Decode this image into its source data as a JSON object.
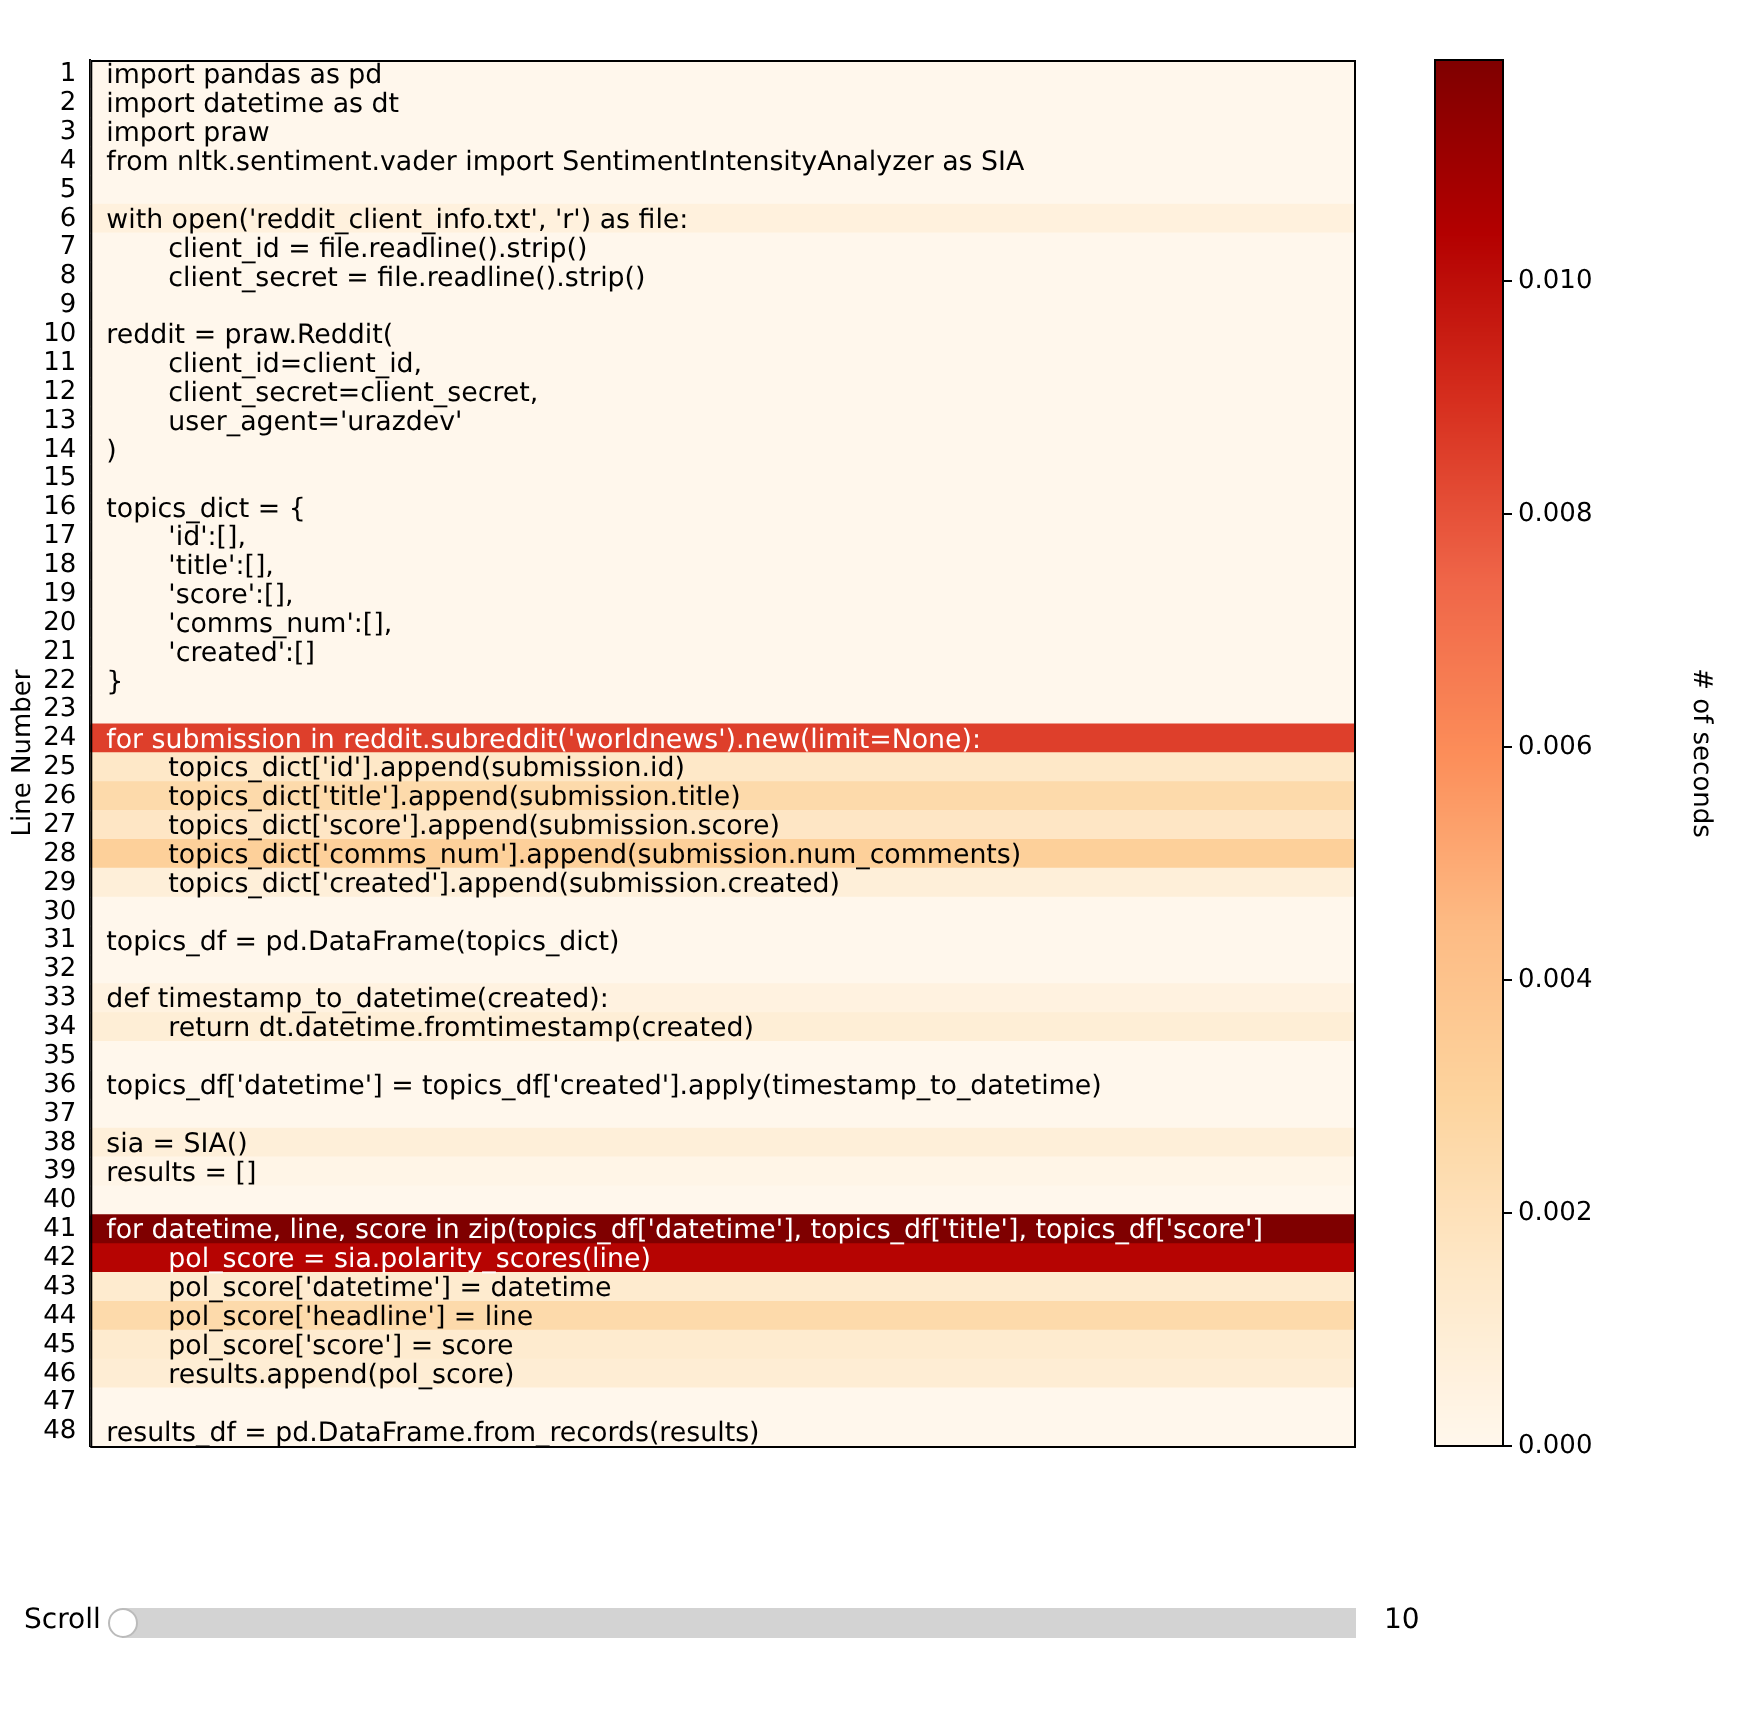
{
  "chart_data": {
    "type": "heatmap",
    "ylabel": "Line Number",
    "clabel": "# of seconds",
    "tick_labels": "y",
    "categories": [
      null
    ],
    "y_categories": [
      "1",
      "2",
      "3",
      "4",
      "5",
      "6",
      "7",
      "8",
      "9",
      "10",
      "11",
      "12",
      "13",
      "14",
      "15",
      "16",
      "17",
      "18",
      "19",
      "20",
      "21",
      "22",
      "23",
      "24",
      "25",
      "26",
      "27",
      "28",
      "29",
      "30",
      "31",
      "32",
      "33",
      "34",
      "35",
      "36",
      "37",
      "38",
      "39",
      "40",
      "41",
      "42",
      "43",
      "44",
      "45",
      "46",
      "47",
      "48"
    ],
    "cells": [
      [
        0
      ],
      [
        0
      ],
      [
        0
      ],
      [
        0
      ],
      [
        0
      ],
      [
        0.0006
      ],
      [
        0
      ],
      [
        0
      ],
      [
        0
      ],
      [
        0
      ],
      [
        0
      ],
      [
        0
      ],
      [
        0
      ],
      [
        0
      ],
      [
        0
      ],
      [
        0
      ],
      [
        0
      ],
      [
        0
      ],
      [
        0
      ],
      [
        0
      ],
      [
        0
      ],
      [
        0
      ],
      [
        0
      ],
      [
        0.0085
      ],
      [
        0.0015
      ],
      [
        0.0025
      ],
      [
        0.0016
      ],
      [
        0.0032
      ],
      [
        0.0008
      ],
      [
        0
      ],
      [
        0
      ],
      [
        0
      ],
      [
        0.0005
      ],
      [
        0.0009
      ],
      [
        0
      ],
      [
        0
      ],
      [
        0
      ],
      [
        0.0008
      ],
      [
        0.0002
      ],
      [
        0
      ],
      [
        0.0119
      ],
      [
        0.0103
      ],
      [
        0.0012
      ],
      [
        0.0025
      ],
      [
        0.0012
      ],
      [
        0.001
      ],
      [
        0
      ],
      [
        0
      ]
    ],
    "cell_labels": [
      [
        "import pandas as pd"
      ],
      [
        "import datetime as dt"
      ],
      [
        "import praw"
      ],
      [
        "from nltk.sentiment.vader import SentimentIntensityAnalyzer as SIA"
      ],
      [
        null
      ],
      [
        "with open('reddit_client_info.txt', 'r') as file:"
      ],
      [
        "    client_id = file.readline().strip()"
      ],
      [
        "    client_secret = file.readline().strip()"
      ],
      [
        null
      ],
      [
        "reddit = praw.Reddit("
      ],
      [
        "    client_id=client_id,"
      ],
      [
        "    client_secret=client_secret,"
      ],
      [
        "    user_agent='urazdev'"
      ],
      [
        ")"
      ],
      [
        null
      ],
      [
        "topics_dict = {"
      ],
      [
        "    'id':[],"
      ],
      [
        "    'title':[],"
      ],
      [
        "    'score':[],"
      ],
      [
        "    'comms_num':[],"
      ],
      [
        "    'created':[]"
      ],
      [
        "}"
      ],
      [
        null
      ],
      [
        "for submission in reddit.subreddit('worldnews').new(limit=None):"
      ],
      [
        "    topics_dict['id'].append(submission.id)"
      ],
      [
        "    topics_dict['title'].append(submission.title)"
      ],
      [
        "    topics_dict['score'].append(submission.score)"
      ],
      [
        "    topics_dict['comms_num'].append(submission.num_comments)"
      ],
      [
        "    topics_dict['created'].append(submission.created)"
      ],
      [
        null
      ],
      [
        "topics_df = pd.DataFrame(topics_dict)"
      ],
      [
        null
      ],
      [
        "def timestamp_to_datetime(created):"
      ],
      [
        "    return dt.datetime.fromtimestamp(created)"
      ],
      [
        null
      ],
      [
        "topics_df['datetime'] = topics_df['created'].apply(timestamp_to_datetime)"
      ],
      [
        null
      ],
      [
        "sia = SIA()"
      ],
      [
        "results = []"
      ],
      [
        null
      ],
      [
        "for datetime, line, score in zip(topics_df['datetime'], topics_df['title'], topics_df['score']"
      ],
      [
        "    pol_score = sia.polarity_scores(line)"
      ],
      [
        "    pol_score['datetime'] = datetime"
      ],
      [
        "    pol_score['headline'] = line"
      ],
      [
        "    pol_score['score'] = score"
      ],
      [
        "    results.append(pol_score)"
      ],
      [
        null
      ],
      [
        "results_df = pd.DataFrame.from_records(results)"
      ]
    ],
    "clim": [
      0,
      0.0119
    ],
    "cticks": [
      {
        "value": 0,
        "label": "0.000"
      },
      {
        "value": 0.002,
        "label": "0.002"
      },
      {
        "value": 0.004,
        "label": "0.004"
      },
      {
        "value": 0.006,
        "label": "0.006"
      },
      {
        "value": 0.008,
        "label": "0.008"
      },
      {
        "value": 0.01,
        "label": "0.010"
      }
    ],
    "annotations": [
      "Scroll",
      "10"
    ]
  }
}
